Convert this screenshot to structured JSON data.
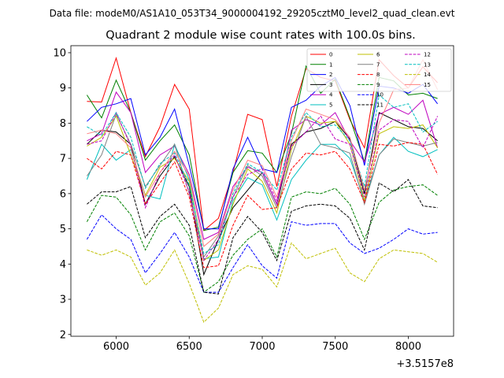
{
  "chart_data": {
    "type": "line",
    "suptitle": "Data file: modeM0/AS1A10_053T34_9000004192_29205cztM0_level2_quad_clean.evt",
    "title": "Quadrant 2 module wise count rates with 100.0s bins.",
    "xlabel": "",
    "ylabel": "",
    "x_offset_label": "+3.5157e8",
    "xlim": [
      5690,
      8310
    ],
    "ylim": [
      1.95,
      10.2
    ],
    "xticks": [
      6000,
      6500,
      7000,
      7500,
      8000
    ],
    "yticks": [
      2,
      3,
      4,
      5,
      6,
      7,
      8,
      9,
      10
    ],
    "x": [
      5800,
      5900,
      6000,
      6100,
      6200,
      6300,
      6400,
      6500,
      6600,
      6700,
      6800,
      6900,
      7000,
      7100,
      7200,
      7300,
      7400,
      7500,
      7600,
      7700,
      7800,
      7900,
      8000,
      8100,
      8200
    ],
    "legend_position": "top-right",
    "grid": false,
    "series": [
      {
        "name": "0",
        "color": "#ff0000",
        "style": "solid",
        "values": [
          8.62,
          8.6,
          9.85,
          8.3,
          7.05,
          7.9,
          9.1,
          8.4,
          4.95,
          5.3,
          6.6,
          8.25,
          8.1,
          6.2,
          8.2,
          9.55,
          9.3,
          9.2,
          8.1,
          7.3,
          9.8,
          9.35,
          9.0,
          9.6,
          9.15
        ]
      },
      {
        "name": "1",
        "color": "#008000",
        "style": "solid",
        "values": [
          8.8,
          8.15,
          9.22,
          8.3,
          6.95,
          7.5,
          7.95,
          7.1,
          4.95,
          5.05,
          6.6,
          7.22,
          7.15,
          6.6,
          7.7,
          9.62,
          8.85,
          9.25,
          8.15,
          6.9,
          9.3,
          9.2,
          8.8,
          8.85,
          8.7
        ]
      },
      {
        "name": "2",
        "color": "#0000ff",
        "style": "solid",
        "values": [
          8.05,
          8.45,
          8.55,
          8.7,
          7.1,
          7.6,
          8.4,
          6.8,
          5.0,
          5.0,
          6.7,
          7.6,
          6.7,
          6.6,
          8.45,
          8.65,
          9.05,
          9.3,
          8.5,
          6.8,
          9.05,
          9.0,
          8.85,
          9.1,
          8.55
        ]
      },
      {
        "name": "3",
        "color": "#000000",
        "style": "solid",
        "values": [
          7.4,
          7.8,
          7.75,
          7.4,
          5.7,
          6.5,
          7.05,
          6.2,
          3.7,
          4.7,
          5.6,
          6.1,
          6.6,
          5.7,
          7.4,
          7.75,
          7.85,
          8.05,
          7.55,
          6.0,
          8.3,
          8.1,
          7.9,
          7.85,
          7.5
        ]
      },
      {
        "name": "4",
        "color": "#bf00bf",
        "style": "solid",
        "values": [
          7.5,
          7.7,
          8.88,
          8.3,
          6.6,
          7.1,
          7.35,
          6.55,
          4.7,
          4.9,
          6.2,
          6.75,
          6.6,
          5.7,
          7.8,
          8.1,
          7.95,
          8.3,
          7.5,
          6.9,
          8.25,
          8.45,
          8.25,
          8.65,
          7.3
        ]
      },
      {
        "name": "5",
        "color": "#00bfbf",
        "style": "solid",
        "values": [
          6.4,
          7.4,
          6.95,
          7.25,
          5.95,
          5.85,
          7.4,
          6.4,
          4.15,
          4.2,
          5.8,
          6.45,
          6.25,
          5.25,
          6.4,
          6.95,
          7.4,
          7.4,
          7.0,
          5.8,
          7.1,
          7.6,
          7.2,
          7.05,
          7.25
        ]
      },
      {
        "name": "6",
        "color": "#bfbf00",
        "style": "solid",
        "values": [
          7.35,
          7.6,
          8.2,
          7.1,
          5.95,
          6.75,
          7.0,
          6.35,
          4.1,
          4.4,
          5.7,
          6.7,
          6.35,
          5.45,
          7.25,
          8.2,
          8.0,
          8.05,
          7.4,
          5.8,
          7.7,
          7.9,
          7.85,
          7.95,
          7.3
        ]
      },
      {
        "name": "7",
        "color": "#808080",
        "style": "solid",
        "values": [
          6.5,
          7.1,
          8.25,
          7.4,
          6.2,
          6.8,
          7.4,
          6.0,
          4.2,
          4.8,
          5.9,
          6.8,
          6.5,
          5.6,
          7.05,
          8.2,
          7.4,
          7.3,
          7.15,
          5.7,
          7.1,
          7.55,
          7.45,
          7.35,
          7.45
        ]
      },
      {
        "name": "8",
        "color": "#ff0000",
        "style": "dashed",
        "values": [
          7.0,
          6.7,
          7.2,
          7.1,
          5.7,
          6.3,
          6.9,
          5.9,
          3.9,
          3.95,
          5.1,
          5.95,
          5.55,
          5.6,
          6.7,
          7.15,
          7.1,
          7.2,
          6.7,
          5.75,
          7.4,
          7.35,
          7.45,
          7.4,
          6.55
        ]
      },
      {
        "name": "9",
        "color": "#008000",
        "style": "dashed",
        "values": [
          5.2,
          5.95,
          5.9,
          5.4,
          4.4,
          5.2,
          5.45,
          4.8,
          3.2,
          3.5,
          4.25,
          4.7,
          5.0,
          4.2,
          5.9,
          6.05,
          6.0,
          6.15,
          5.7,
          4.7,
          5.75,
          6.1,
          6.2,
          6.25,
          5.95
        ]
      },
      {
        "name": "10",
        "color": "#0000ff",
        "style": "dashed",
        "values": [
          4.7,
          5.4,
          5.0,
          4.7,
          3.75,
          4.3,
          4.9,
          4.2,
          3.2,
          3.2,
          3.9,
          4.55,
          3.95,
          3.6,
          5.2,
          5.1,
          5.15,
          5.15,
          4.6,
          4.3,
          4.45,
          4.7,
          5.0,
          4.85,
          4.9
        ]
      },
      {
        "name": "11",
        "color": "#000000",
        "style": "dashed",
        "values": [
          5.7,
          6.05,
          6.05,
          6.2,
          4.75,
          5.35,
          5.7,
          5.1,
          3.2,
          3.15,
          4.75,
          5.35,
          4.9,
          4.1,
          5.5,
          5.65,
          5.7,
          5.65,
          5.3,
          4.4,
          6.3,
          6.05,
          6.4,
          5.65,
          5.6
        ]
      },
      {
        "name": "12",
        "color": "#bf00bf",
        "style": "dashed",
        "values": [
          7.4,
          7.5,
          8.3,
          7.35,
          5.6,
          6.6,
          7.1,
          6.05,
          4.1,
          4.7,
          5.9,
          6.55,
          6.7,
          5.8,
          7.35,
          7.75,
          8.2,
          7.55,
          7.4,
          5.9,
          7.8,
          8.1,
          8.05,
          7.3,
          8.2
        ]
      },
      {
        "name": "13",
        "color": "#00bfbf",
        "style": "dashed",
        "values": [
          7.9,
          7.65,
          8.3,
          7.6,
          6.15,
          6.85,
          7.15,
          6.25,
          4.3,
          4.55,
          6.0,
          6.85,
          6.6,
          6.1,
          7.6,
          8.3,
          7.9,
          7.95,
          7.5,
          6.2,
          8.8,
          8.45,
          8.55,
          7.75,
          8.05
        ]
      },
      {
        "name": "14",
        "color": "#bfbf00",
        "style": "dashed",
        "values": [
          4.4,
          4.25,
          4.4,
          4.2,
          3.4,
          3.75,
          4.4,
          3.45,
          2.35,
          2.75,
          3.7,
          3.95,
          3.85,
          3.35,
          4.6,
          4.15,
          4.3,
          4.45,
          3.75,
          3.5,
          4.15,
          4.4,
          4.35,
          4.3,
          4.05
        ]
      },
      {
        "name": "15",
        "color": "#ff7f7f",
        "style": "solid",
        "values": [
          7.7,
          7.8,
          7.7,
          7.3,
          5.9,
          6.6,
          7.2,
          6.5,
          4.5,
          4.85,
          6.1,
          6.95,
          6.8,
          5.9,
          7.5,
          8.4,
          8.25,
          8.1,
          7.6,
          6.1,
          8.0,
          8.95,
          9.0,
          9.8,
          8.95
        ]
      }
    ]
  }
}
